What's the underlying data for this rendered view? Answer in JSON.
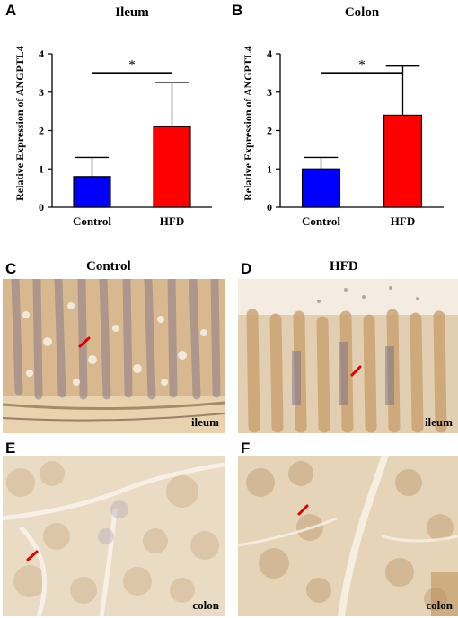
{
  "panels": {
    "A": "A",
    "B": "B",
    "C": "C",
    "D": "D",
    "E": "E",
    "F": "F"
  },
  "chart_data": [
    {
      "type": "bar",
      "title": "Ileum",
      "ylabel": "Relative Expression of ANGPTL4",
      "categories": [
        "Control",
        "HFD"
      ],
      "values": [
        0.8,
        2.1
      ],
      "errors": [
        0.5,
        1.15
      ],
      "colors": [
        "#0000ff",
        "#ff0000"
      ],
      "ylim": [
        0,
        4
      ],
      "yticks": [
        "0",
        "1",
        "2",
        "3",
        "4"
      ],
      "significance": "*"
    },
    {
      "type": "bar",
      "title": "Colon",
      "ylabel": "Relative Expression of ANGPTL4",
      "categories": [
        "Control",
        "HFD"
      ],
      "values": [
        1.0,
        2.4
      ],
      "errors": [
        0.3,
        1.28
      ],
      "colors": [
        "#0000ff",
        "#ff0000"
      ],
      "ylim": [
        0,
        4
      ],
      "yticks": [
        "0",
        "1",
        "2",
        "3",
        "4"
      ],
      "significance": "*"
    }
  ],
  "micrographs": {
    "col_titles": [
      "Control",
      "HFD"
    ],
    "C_label": "ileum",
    "D_label": "ileum",
    "E_label": "colon",
    "F_label": "colon"
  }
}
